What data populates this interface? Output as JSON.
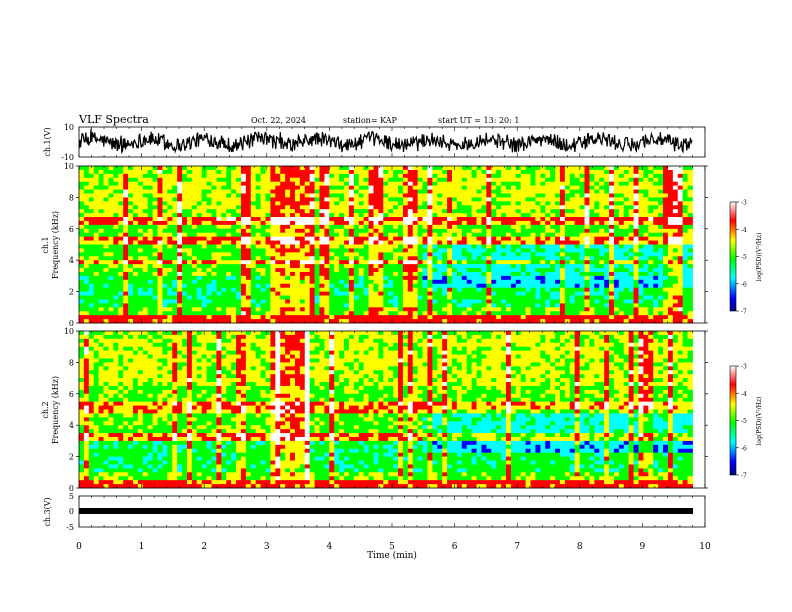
{
  "header": {
    "title": "VLF Spectra",
    "date": "Oct. 22, 2024",
    "station": "station= KAP",
    "start": "start  UT  =   13: 20: 1"
  },
  "chart_data": [
    {
      "id": "ch1-waveform",
      "type": "line",
      "ylabel": "ch.1(V)",
      "ylim": [
        -10,
        10
      ],
      "yticklabels": [
        "10",
        "-10"
      ],
      "xlim": [
        0,
        10
      ],
      "series": [
        {
          "trace": "noisy waveform spanning roughly -8 to 8 V over 0 to 9.8 min"
        }
      ]
    },
    {
      "id": "ch1-spectrogram",
      "type": "heatmap",
      "ylabel": "Frequency  (kHz)",
      "channel_label": "ch.1",
      "ylim": [
        0,
        10
      ],
      "yticklabels": [
        "0",
        "2",
        "4",
        "6",
        "8",
        "10"
      ],
      "xlim": [
        0,
        10
      ],
      "data_xmax": 9.8,
      "colorbar": {
        "label": "log(PSD)(V²/Hz)",
        "range": [
          -7,
          -3
        ],
        "ticklabels": [
          "-3",
          "-4",
          "-5",
          "-6",
          "-7"
        ]
      },
      "bright_bands_khz": [
        [
          5.1,
          5.3
        ],
        [
          6.5,
          6.6
        ],
        [
          3.8,
          3.9
        ]
      ],
      "strong_emission_interval_min": [
        3.05,
        3.7
      ]
    },
    {
      "id": "ch2-spectrogram",
      "type": "heatmap",
      "ylabel": "Frequency  (kHz)",
      "channel_label": "ch.2",
      "ylim": [
        0,
        10
      ],
      "yticklabels": [
        "0",
        "2",
        "4",
        "6",
        "8",
        "10"
      ],
      "xlim": [
        0,
        10
      ],
      "data_xmax": 9.8,
      "colorbar": {
        "label": "log(PSD)(V²/Hz)",
        "range": [
          -7,
          -3
        ],
        "ticklabels": [
          "-3",
          "-4",
          "-5",
          "-6",
          "-7"
        ]
      },
      "bright_bands_khz": [
        [
          5.0,
          5.3
        ],
        [
          3.2,
          3.4
        ]
      ],
      "strong_emission_interval_min": [
        3.05,
        3.7
      ]
    },
    {
      "id": "ch3-waveform",
      "type": "line",
      "ylabel": "ch.3(V)",
      "ylim": [
        -5,
        5
      ],
      "yticklabels": [
        "5",
        "0",
        "-5"
      ],
      "xlim": [
        0,
        10
      ],
      "series": [
        {
          "trace": "flat band near -1 V from 0 to 9.8 min"
        }
      ]
    }
  ],
  "xaxis": {
    "label": "Time  (min)",
    "ticklabels": [
      "0",
      "1",
      "2",
      "3",
      "4",
      "5",
      "6",
      "7",
      "8",
      "9",
      "10"
    ]
  },
  "colors": {
    "colormap": [
      "#000080",
      "#0000ff",
      "#00ffff",
      "#00ff00",
      "#ffff00",
      "#ff0000",
      "#ffffff"
    ]
  }
}
